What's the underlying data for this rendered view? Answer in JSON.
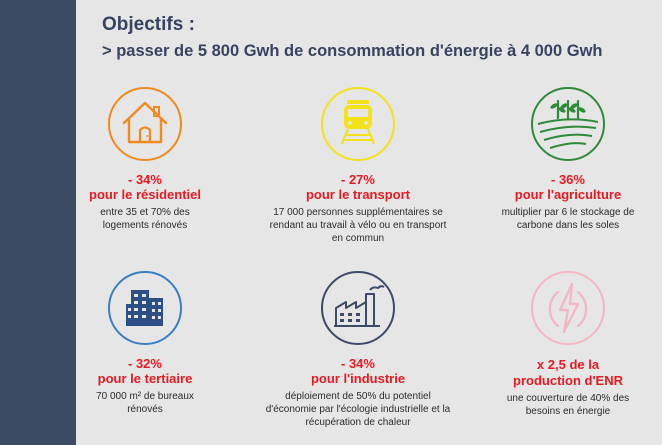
{
  "header": {
    "title": "Objectifs :",
    "subtitle": "> passer de 5 800 Gwh de consommation d'énergie à 4 000 Gwh"
  },
  "colors": {
    "sidebar": "#3d4a63",
    "heading": "#384360",
    "accent_red": "#e31c23",
    "residentiel": "#f08a1d",
    "transport": "#f3e21a",
    "agriculture": "#2f8a3a",
    "tertiaire": "#3a7fc1",
    "industrie": "#3e4b66",
    "enr": "#f2b8c4"
  },
  "cards": [
    {
      "icon": "house-icon",
      "pct": "- 34%",
      "label": "pour le résidentiel",
      "desc": "entre 35 et 70% des logements rénovés"
    },
    {
      "icon": "train-icon",
      "pct": "- 27%",
      "label": "pour le transport",
      "desc": "17 000 personnes supplémentaires se rendant au travail à vélo ou en transport en commun"
    },
    {
      "icon": "agriculture-icon",
      "pct": "- 36%",
      "label": "pour l'agriculture",
      "desc": "multiplier par 6 le stockage de carbone dans les soles"
    },
    {
      "icon": "office-building-icon",
      "pct": "- 32%",
      "label": "pour le tertiaire",
      "desc": "70 000 m² de bureaux rénovés"
    },
    {
      "icon": "factory-icon",
      "pct": "- 34%",
      "label": "pour l'industrie",
      "desc": "déploiement de 50% du potentiel d'économie par l'écologie industrielle et la récupération de chaleur"
    },
    {
      "icon": "lightning-icon",
      "pct": "x 2,5 de la",
      "label": "production d'ENR",
      "desc": "une couverture de 40% des besoins en énergie"
    }
  ]
}
